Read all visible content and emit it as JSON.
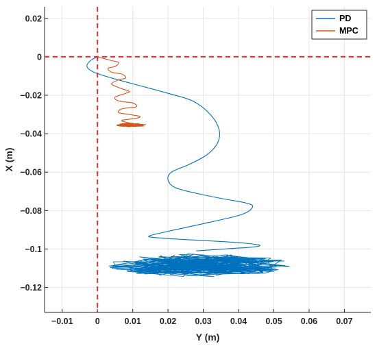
{
  "chart_data": {
    "type": "line",
    "title": "",
    "xlabel": "Y (m)",
    "ylabel": "X (m)",
    "xlim": [
      -0.015,
      0.0775
    ],
    "ylim": [
      -0.133,
      0.026
    ],
    "x_ticks": [
      -0.01,
      0,
      0.01,
      0.02,
      0.03,
      0.04,
      0.05,
      0.06,
      0.07
    ],
    "x_tick_labels": [
      "−0.01",
      "0",
      "0.01",
      "0.02",
      "0.03",
      "0.04",
      "0.05",
      "0.06",
      "0.07"
    ],
    "y_ticks": [
      0.02,
      0,
      -0.02,
      -0.04,
      -0.06,
      -0.08,
      -0.1,
      -0.12
    ],
    "y_tick_labels": [
      "0.02",
      "0",
      "−0.02",
      "−0.04",
      "−0.06",
      "−0.08",
      "−0.1",
      "−0.12"
    ],
    "grid": true,
    "legend_position": "top-right",
    "reference_lines": {
      "x": 0,
      "y": 0,
      "color": "#ee2d2d",
      "style": "dashed"
    },
    "series": [
      {
        "name": "PD",
        "color": "#0072bd",
        "x": [
          0,
          -0.002,
          -0.003,
          -0.001,
          0.004,
          0.012,
          0.02,
          0.027,
          0.032,
          0.0345,
          0.034,
          0.031,
          0.026,
          0.021,
          0.02,
          0.022,
          0.028,
          0.036,
          0.042,
          0.044,
          0.041,
          0.032,
          0.022,
          0.015,
          0.016,
          0.024,
          0.034,
          0.042,
          0.046,
          0.044,
          0.036,
          0.028
        ],
        "y": [
          0,
          -0.002,
          -0.005,
          -0.008,
          -0.011,
          -0.015,
          -0.019,
          -0.023,
          -0.03,
          -0.038,
          -0.045,
          -0.051,
          -0.056,
          -0.06,
          -0.064,
          -0.068,
          -0.071,
          -0.074,
          -0.076,
          -0.078,
          -0.082,
          -0.086,
          -0.09,
          -0.093,
          -0.094,
          -0.095,
          -0.096,
          -0.097,
          -0.098,
          -0.099,
          -0.1,
          -0.101
        ]
      },
      {
        "name": "MPC",
        "color": "#d95319",
        "x": [
          0,
          0.002,
          0.004,
          0.006,
          0.005,
          0.003,
          0.004,
          0.007,
          0.008,
          0.006,
          0.004,
          0.006,
          0.009,
          0.008,
          0.005,
          0.006,
          0.01,
          0.011,
          0.007,
          0.006,
          0.009,
          0.012,
          0.011,
          0.007,
          0.008,
          0.011
        ],
        "y": [
          0,
          -0.001,
          -0.002,
          -0.003,
          -0.005,
          -0.006,
          -0.008,
          -0.009,
          -0.011,
          -0.012,
          -0.014,
          -0.016,
          -0.018,
          -0.019,
          -0.021,
          -0.023,
          -0.024,
          -0.026,
          -0.027,
          -0.029,
          -0.03,
          -0.031,
          -0.032,
          -0.033,
          -0.034,
          -0.035
        ]
      }
    ],
    "clusters": [
      {
        "series": "PD",
        "center": [
          0.029,
          -0.1085
        ],
        "spread": [
          0.026,
          0.006
        ]
      },
      {
        "series": "MPC",
        "center": [
          0.0095,
          -0.0355
        ],
        "spread": [
          0.0045,
          0.001
        ]
      }
    ]
  }
}
